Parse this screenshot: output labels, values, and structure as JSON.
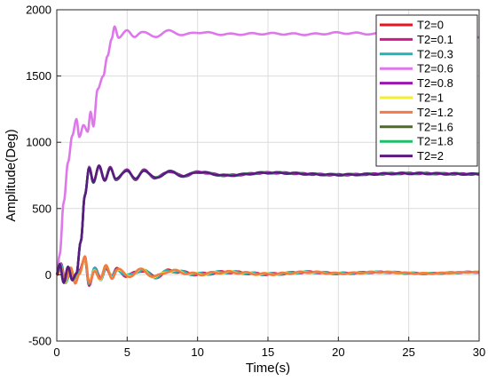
{
  "chart_data": {
    "type": "line",
    "xlabel": "Time(s)",
    "ylabel": "Amplitude(Deg)",
    "xlim": [
      0,
      30
    ],
    "ylim": [
      -500,
      2000
    ],
    "xticks": [
      "0",
      "5",
      "10",
      "15",
      "20",
      "25",
      "30"
    ],
    "yticks": [
      "-500",
      "0",
      "500",
      "1000",
      "1500",
      "2000"
    ],
    "grid": true,
    "legend_position": "top-right",
    "series": [
      {
        "name": "T2=0",
        "color": "#e8151b",
        "group": "low"
      },
      {
        "name": "T2=0.1",
        "color": "#cc1a8e",
        "group": "low"
      },
      {
        "name": "T2=0.3",
        "color": "#22b3b3",
        "group": "low"
      },
      {
        "name": "T2=0.6",
        "color": "#dd77ea",
        "group": "high"
      },
      {
        "name": "T2=0.8",
        "color": "#9a15b3",
        "group": "mid"
      },
      {
        "name": "T2=1",
        "color": "#f2ee30",
        "group": "low"
      },
      {
        "name": "T2=1.2",
        "color": "#f27a45",
        "group": "low"
      },
      {
        "name": "T2=1.6",
        "color": "#4e6a26",
        "group": "mid"
      },
      {
        "name": "T2=1.8",
        "color": "#1fbf6a",
        "group": "mid"
      },
      {
        "name": "T2=2",
        "color": "#5a1a82",
        "group": "mid"
      }
    ],
    "key_points": {
      "high": [
        [
          0,
          0
        ],
        [
          0.2,
          150
        ],
        [
          0.5,
          550
        ],
        [
          0.8,
          850
        ],
        [
          1.1,
          1050
        ],
        [
          1.4,
          1175
        ],
        [
          1.6,
          1040
        ],
        [
          1.9,
          1130
        ],
        [
          2.2,
          1080
        ],
        [
          2.4,
          1230
        ],
        [
          2.6,
          1120
        ],
        [
          2.9,
          1400
        ],
        [
          3.3,
          1500
        ],
        [
          3.6,
          1650
        ],
        [
          3.9,
          1780
        ],
        [
          4.1,
          1880
        ],
        [
          4.4,
          1790
        ],
        [
          5,
          1840
        ],
        [
          5.5,
          1800
        ],
        [
          6,
          1830
        ],
        [
          7,
          1800
        ],
        [
          8,
          1840
        ],
        [
          9,
          1810
        ],
        [
          10,
          1830
        ],
        [
          12,
          1815
        ],
        [
          15,
          1820
        ],
        [
          18,
          1815
        ],
        [
          20,
          1825
        ],
        [
          23,
          1818
        ],
        [
          26,
          1825
        ],
        [
          28,
          1820
        ],
        [
          29.5,
          1820
        ],
        [
          30,
          1790
        ]
      ],
      "mid": [
        [
          0,
          0
        ],
        [
          0.2,
          80
        ],
        [
          0.5,
          -60
        ],
        [
          0.8,
          60
        ],
        [
          1.1,
          -40
        ],
        [
          1.4,
          10
        ],
        [
          1.7,
          250
        ],
        [
          2.0,
          600
        ],
        [
          2.3,
          810
        ],
        [
          2.6,
          700
        ],
        [
          3.0,
          820
        ],
        [
          3.4,
          710
        ],
        [
          3.8,
          810
        ],
        [
          4.2,
          720
        ],
        [
          5,
          790
        ],
        [
          5.6,
          720
        ],
        [
          6.2,
          790
        ],
        [
          7,
          730
        ],
        [
          8,
          780
        ],
        [
          9,
          745
        ],
        [
          10,
          775
        ],
        [
          12,
          750
        ],
        [
          15,
          770
        ],
        [
          20,
          755
        ],
        [
          25,
          765
        ],
        [
          30,
          760
        ]
      ],
      "low": [
        [
          0,
          0
        ],
        [
          0.3,
          70
        ],
        [
          0.6,
          -50
        ],
        [
          1.0,
          40
        ],
        [
          1.3,
          -60
        ],
        [
          1.6,
          20
        ],
        [
          2.0,
          130
        ],
        [
          2.3,
          -70
        ],
        [
          2.7,
          40
        ],
        [
          3.1,
          -30
        ],
        [
          3.5,
          60
        ],
        [
          3.9,
          -20
        ],
        [
          4.3,
          45
        ],
        [
          5,
          -10
        ],
        [
          6,
          35
        ],
        [
          7,
          -15
        ],
        [
          8,
          30
        ],
        [
          10,
          5
        ],
        [
          12,
          20
        ],
        [
          15,
          5
        ],
        [
          18,
          20
        ],
        [
          20,
          10
        ],
        [
          23,
          20
        ],
        [
          26,
          10
        ],
        [
          30,
          20
        ]
      ]
    }
  }
}
